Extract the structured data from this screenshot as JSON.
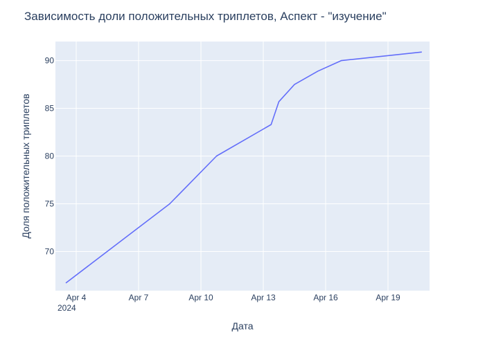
{
  "chart_data": {
    "type": "line",
    "title": "Зависимость доли положительных триплетов, Аспект - \"изучение\"",
    "xlabel": "Дата",
    "ylabel": "Доля положительных триплетов",
    "x_ticks": [
      "Apr 4",
      "Apr 7",
      "Apr 10",
      "Apr 13",
      "Apr 16",
      "Apr 19"
    ],
    "x_year_label": "2024",
    "y_ticks": [
      70,
      75,
      80,
      85,
      90
    ],
    "xlim": [
      "2024-04-03",
      "2024-04-21"
    ],
    "ylim": [
      65.9,
      92.0
    ],
    "grid": true,
    "line_color": "#636efa",
    "series": [
      {
        "x": [
          "2024-04-03 12:00",
          "2024-04-08 12:00",
          "2024-04-10 18:00",
          "2024-04-13 09:00",
          "2024-04-13 18:00",
          "2024-04-14 12:00",
          "2024-04-15 15:00",
          "2024-04-16 18:00",
          "2024-04-20 15:00"
        ],
        "values": [
          66.7,
          75.0,
          80.0,
          83.3,
          85.7,
          87.5,
          88.9,
          90.0,
          90.9
        ]
      }
    ]
  }
}
